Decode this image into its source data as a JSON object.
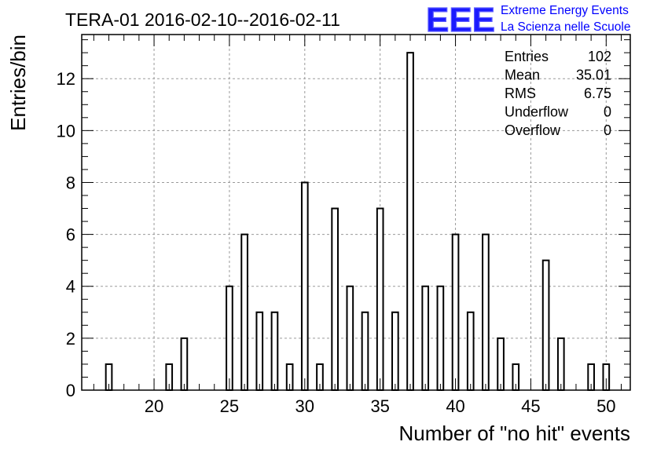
{
  "chart_data": {
    "type": "bar",
    "title": "TERA-01 2016-02-10--2016-02-11",
    "xlabel": "Number of \"no hit\" events",
    "ylabel": "Entries/bin",
    "xlim": [
      15.2,
      51.6
    ],
    "ylim": [
      0,
      13.7
    ],
    "grid": true,
    "bar_width": 0.4,
    "x_ticks": [
      20,
      25,
      30,
      35,
      40,
      45,
      50
    ],
    "y_ticks": [
      0,
      2,
      4,
      6,
      8,
      10,
      12
    ],
    "points": [
      {
        "x": 17,
        "y": 1
      },
      {
        "x": 21,
        "y": 1
      },
      {
        "x": 22,
        "y": 2
      },
      {
        "x": 25,
        "y": 4
      },
      {
        "x": 26,
        "y": 6
      },
      {
        "x": 27,
        "y": 3
      },
      {
        "x": 28,
        "y": 3
      },
      {
        "x": 29,
        "y": 1
      },
      {
        "x": 30,
        "y": 8
      },
      {
        "x": 31,
        "y": 1
      },
      {
        "x": 32,
        "y": 7
      },
      {
        "x": 33,
        "y": 4
      },
      {
        "x": 34,
        "y": 3
      },
      {
        "x": 35,
        "y": 7
      },
      {
        "x": 36,
        "y": 3
      },
      {
        "x": 37,
        "y": 13
      },
      {
        "x": 38,
        "y": 4
      },
      {
        "x": 39,
        "y": 4
      },
      {
        "x": 40,
        "y": 6
      },
      {
        "x": 41,
        "y": 3
      },
      {
        "x": 42,
        "y": 6
      },
      {
        "x": 43,
        "y": 2
      },
      {
        "x": 44,
        "y": 1
      },
      {
        "x": 46,
        "y": 5
      },
      {
        "x": 47,
        "y": 2
      },
      {
        "x": 49,
        "y": 1
      },
      {
        "x": 50,
        "y": 1
      }
    ],
    "stats": [
      {
        "label": "Entries",
        "value": "102"
      },
      {
        "label": "Mean",
        "value": "35.01"
      },
      {
        "label": "RMS",
        "value": "6.75"
      },
      {
        "label": "Underflow",
        "value": "0"
      },
      {
        "label": "Overflow",
        "value": "0"
      }
    ]
  },
  "logo": {
    "mark": "EEE",
    "line1": "Extreme Energy Events",
    "line2": "La Scienza nelle Scuole",
    "color": "#0000ff"
  }
}
